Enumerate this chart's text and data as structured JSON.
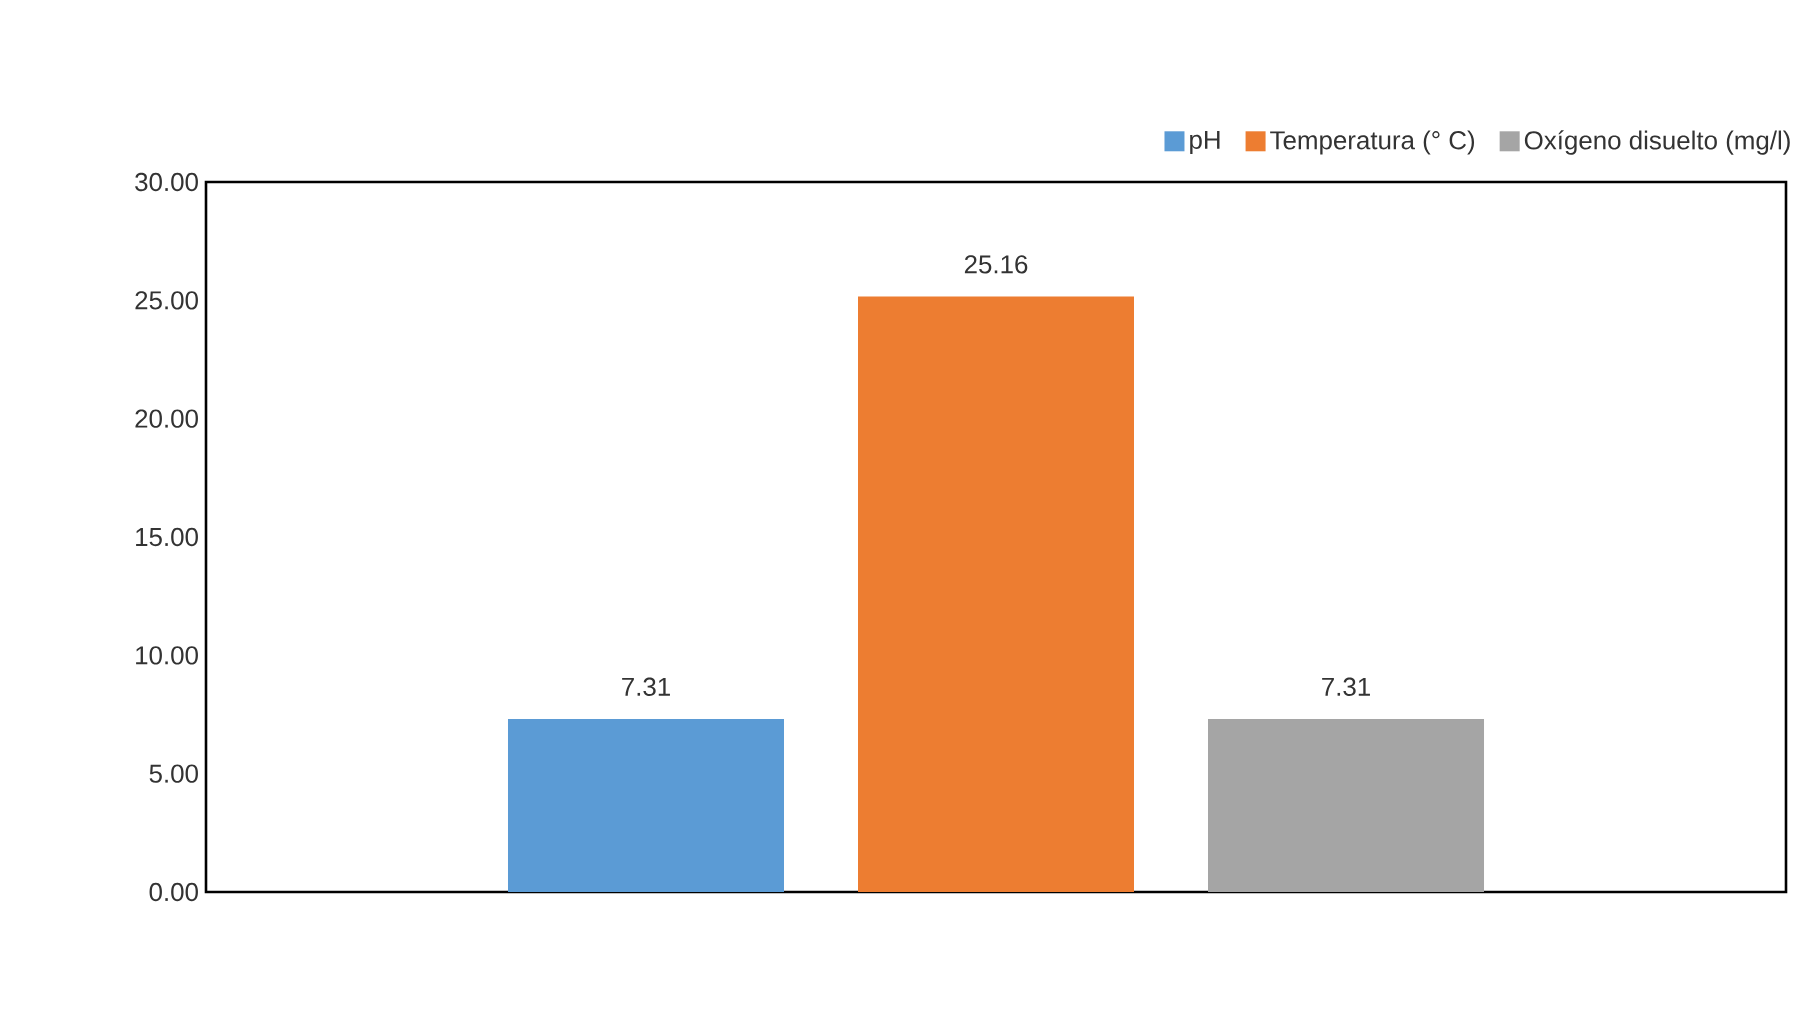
{
  "chart_data": {
    "type": "bar",
    "categories": [
      null
    ],
    "series": [
      {
        "name": "pH",
        "color": "#5b9bd5",
        "values": [
          7.31
        ]
      },
      {
        "name": "Temperatura (° C)",
        "color": "#ed7d31",
        "values": [
          25.16
        ]
      },
      {
        "name": "Oxígeno disuelto (mg/l)",
        "color": "#a5a5a5",
        "values": [
          7.31
        ]
      }
    ],
    "ylim": [
      0,
      30
    ],
    "yticks": [
      {
        "value": 0,
        "label": "0.00"
      },
      {
        "value": 5,
        "label": "5.00"
      },
      {
        "value": 10,
        "label": "10.00"
      },
      {
        "value": 15,
        "label": "15.00"
      },
      {
        "value": 20,
        "label": "20.00"
      },
      {
        "value": 25,
        "label": "25.00"
      },
      {
        "value": 30,
        "label": "30.00"
      }
    ],
    "data_labels": true,
    "legend": "top right",
    "grid": false
  }
}
